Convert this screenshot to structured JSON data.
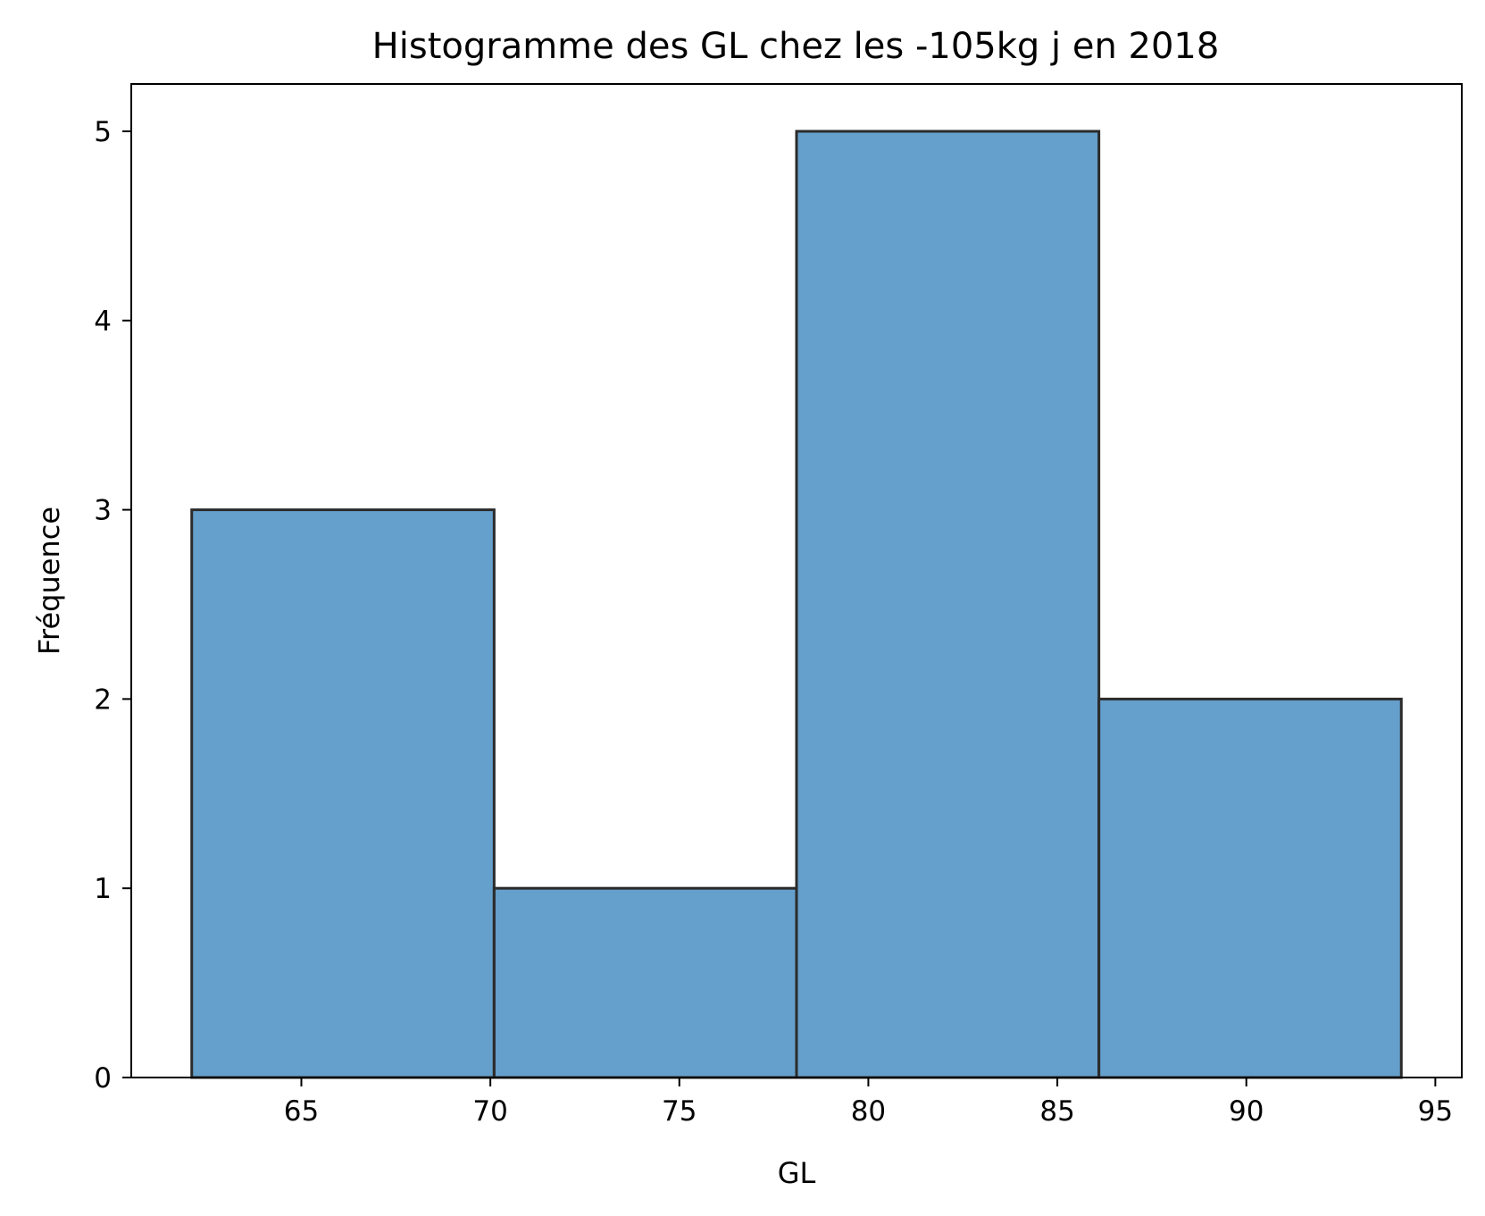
{
  "chart_data": {
    "type": "bar",
    "title": "Histogramme des GL chez les -105kg j en 2018",
    "xlabel": "GL",
    "ylabel": "Fréquence",
    "bins": [
      {
        "start": 62.1,
        "end": 70.1,
        "value": 3
      },
      {
        "start": 70.1,
        "end": 78.1,
        "value": 1
      },
      {
        "start": 78.1,
        "end": 86.1,
        "value": 5
      },
      {
        "start": 86.1,
        "end": 94.1,
        "value": 2
      }
    ],
    "xlim": [
      60.5,
      95.7
    ],
    "ylim": [
      0,
      5.25
    ],
    "xticks": [
      "65",
      "70",
      "75",
      "80",
      "85",
      "90",
      "95"
    ],
    "yticks": [
      "0",
      "1",
      "2",
      "3",
      "4",
      "5"
    ],
    "grid": false,
    "bar_color": "#4a8ec2",
    "bar_edge_color": "#2b2b2b"
  }
}
